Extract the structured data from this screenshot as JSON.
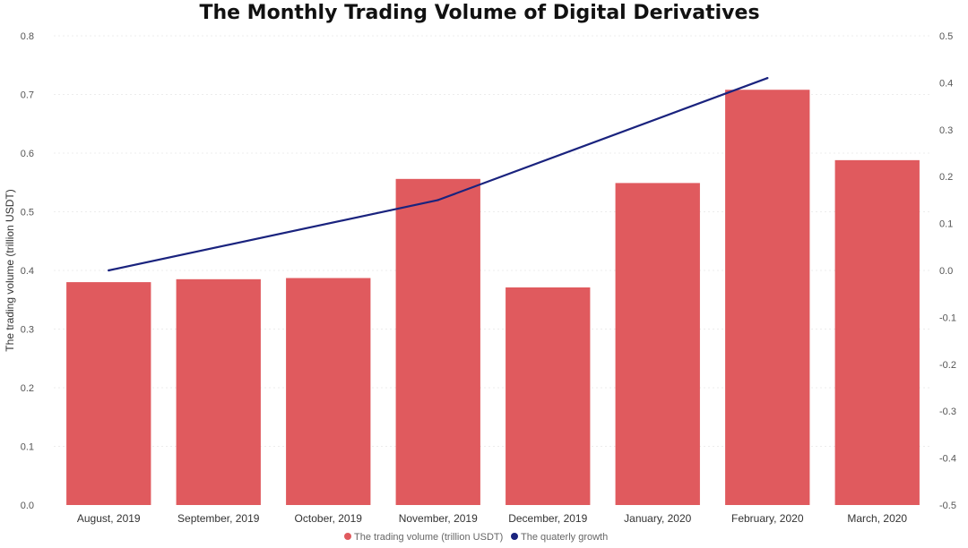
{
  "chart_data": {
    "type": "bar",
    "title": "The Monthly Trading Volume of Digital Derivatives",
    "categories": [
      "August, 2019",
      "September, 2019",
      "October, 2019",
      "November, 2019",
      "December, 2019",
      "January, 2020",
      "February, 2020",
      "March, 2020"
    ],
    "series": [
      {
        "name": "The trading volume (trillion USDT)",
        "type": "bar",
        "axis": "left",
        "color": "#e05a5e",
        "values": [
          0.38,
          0.385,
          0.387,
          0.556,
          0.371,
          0.549,
          0.708,
          0.588
        ]
      },
      {
        "name": "The quaterly growth",
        "type": "line",
        "axis": "right",
        "color": "#1a237e",
        "points": [
          {
            "category": "August, 2019",
            "value": 0.0
          },
          {
            "category": "November, 2019",
            "value": 0.15
          },
          {
            "category": "February, 2020",
            "value": 0.41
          }
        ]
      }
    ],
    "ylabel": "The trading volume (trillion USDT)",
    "ylim": [
      0,
      0.8
    ],
    "y_ticks": [
      "0.0",
      "0.1",
      "0.2",
      "0.3",
      "0.4",
      "0.5",
      "0.6",
      "0.7",
      "0.8"
    ],
    "y2lim": [
      -0.5,
      0.5
    ],
    "y2_ticks": [
      "-0.5",
      "-0.4",
      "-0.3",
      "-0.2",
      "-0.1",
      "0.0",
      "0.1",
      "0.2",
      "0.3",
      "0.4",
      "0.5"
    ],
    "grid": true,
    "legend_position": "bottom"
  }
}
